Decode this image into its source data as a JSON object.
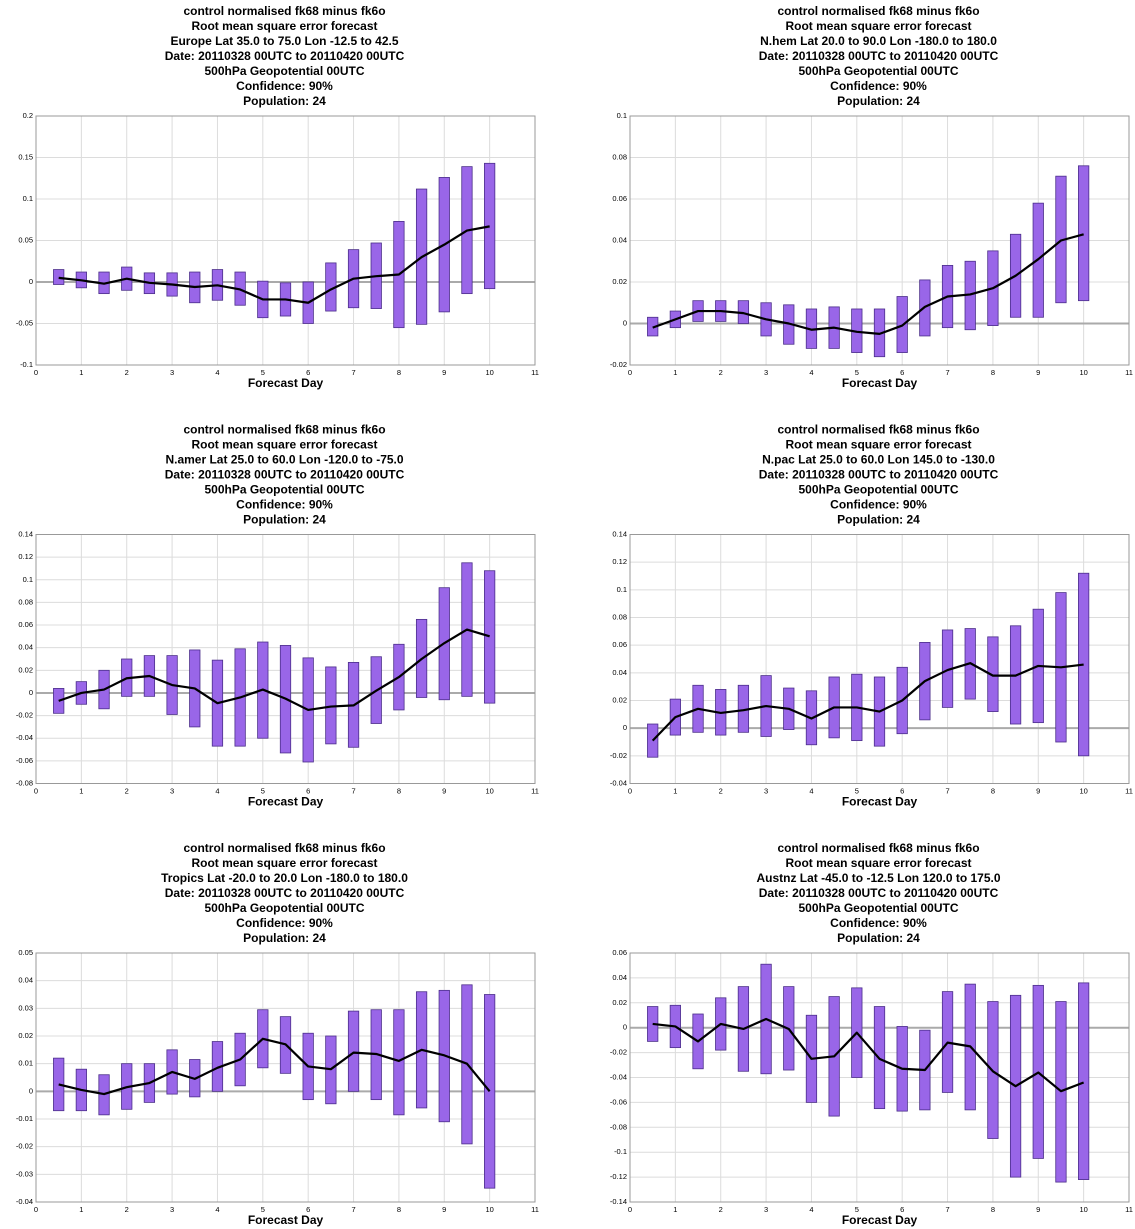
{
  "chart_data": [
    {
      "type": "interval",
      "title": [
        "control normalised  fk68 minus fk6o",
        "Root mean square error forecast",
        "Europe  Lat  35.0 to 75.0 Lon  -12.5 to  42.5",
        "Date: 20110328 00UTC to 20110420 00UTC",
        "500hPa Geopotential 00UTC",
        "Confidence: 90%",
        "Population: 24"
      ],
      "xlabel": "Forecast Day",
      "xlim": [
        0,
        11
      ],
      "xticks": [
        0,
        1,
        2,
        3,
        4,
        5,
        6,
        7,
        8,
        9,
        10,
        11
      ],
      "ylim": [
        -0.1,
        0.2
      ],
      "yticks": [
        -0.1,
        -0.05,
        0,
        0.05,
        0.1,
        0.15,
        0.2
      ],
      "grid": true,
      "bar_color": "#9966e8",
      "line_color": "#000000",
      "x": [
        0.5,
        1,
        1.5,
        2,
        2.5,
        3,
        3.5,
        4,
        4.5,
        5,
        5.5,
        6,
        6.5,
        7,
        7.5,
        8,
        8.5,
        9,
        9.5,
        10
      ],
      "values": [
        0.005,
        0.002,
        -0.002,
        0.004,
        -0.001,
        -0.003,
        -0.006,
        -0.004,
        -0.009,
        -0.021,
        -0.021,
        -0.025,
        -0.009,
        0.004,
        0.007,
        0.009,
        0.03,
        0.045,
        0.062,
        0.067
      ],
      "low": [
        -0.003,
        -0.007,
        -0.014,
        -0.01,
        -0.014,
        -0.017,
        -0.025,
        -0.022,
        -0.028,
        -0.043,
        -0.041,
        -0.05,
        -0.035,
        -0.031,
        -0.032,
        -0.055,
        -0.051,
        -0.036,
        -0.014,
        -0.008
      ],
      "high": [
        0.015,
        0.012,
        0.012,
        0.018,
        0.011,
        0.011,
        0.012,
        0.015,
        0.012,
        0.001,
        -0.001,
        0.0,
        0.023,
        0.039,
        0.047,
        0.073,
        0.112,
        0.126,
        0.139,
        0.143
      ]
    },
    {
      "type": "interval",
      "title": [
        "control normalised  fk68 minus fk6o",
        "Root mean square error forecast",
        "N.hem  Lat  20.0 to 90.0 Lon  -180.0 to  180.0",
        "Date: 20110328 00UTC to 20110420 00UTC",
        "500hPa Geopotential 00UTC",
        "Confidence: 90%",
        "Population: 24"
      ],
      "xlabel": "Forecast Day",
      "xlim": [
        0,
        11
      ],
      "xticks": [
        0,
        1,
        2,
        3,
        4,
        5,
        6,
        7,
        8,
        9,
        10,
        11
      ],
      "ylim": [
        -0.02,
        0.1
      ],
      "yticks": [
        -0.02,
        0,
        0.02,
        0.04,
        0.06,
        0.08,
        0.1
      ],
      "grid": true,
      "bar_color": "#9966e8",
      "line_color": "#000000",
      "x": [
        0.5,
        1,
        1.5,
        2,
        2.5,
        3,
        3.5,
        4,
        4.5,
        5,
        5.5,
        6,
        6.5,
        7,
        7.5,
        8,
        8.5,
        9,
        9.5,
        10
      ],
      "values": [
        -0.002,
        0.002,
        0.006,
        0.006,
        0.005,
        0.002,
        0.0,
        -0.003,
        -0.002,
        -0.004,
        -0.005,
        -0.001,
        0.008,
        0.013,
        0.014,
        0.017,
        0.023,
        0.031,
        0.04,
        0.043
      ],
      "low": [
        -0.006,
        -0.002,
        0.001,
        0.001,
        0.0,
        -0.006,
        -0.01,
        -0.012,
        -0.012,
        -0.014,
        -0.016,
        -0.014,
        -0.006,
        -0.002,
        -0.003,
        -0.001,
        0.003,
        0.003,
        0.01,
        0.011
      ],
      "high": [
        0.003,
        0.006,
        0.011,
        0.011,
        0.011,
        0.01,
        0.009,
        0.007,
        0.008,
        0.007,
        0.007,
        0.013,
        0.021,
        0.028,
        0.03,
        0.035,
        0.043,
        0.058,
        0.071,
        0.076
      ]
    },
    {
      "type": "interval",
      "title": [
        "control normalised  fk68 minus fk6o",
        "Root mean square error forecast",
        "N.amer  Lat  25.0 to 60.0 Lon  -120.0 to  -75.0",
        "Date: 20110328 00UTC to 20110420 00UTC",
        "500hPa Geopotential 00UTC",
        "Confidence: 90%",
        "Population: 24"
      ],
      "xlabel": "Forecast Day",
      "xlim": [
        0,
        11
      ],
      "xticks": [
        0,
        1,
        2,
        3,
        4,
        5,
        6,
        7,
        8,
        9,
        10,
        11
      ],
      "ylim": [
        -0.08,
        0.14
      ],
      "yticks": [
        -0.08,
        -0.06,
        -0.04,
        -0.02,
        0,
        0.02,
        0.04,
        0.06,
        0.08,
        0.1,
        0.12,
        0.14
      ],
      "grid": true,
      "bar_color": "#9966e8",
      "line_color": "#000000",
      "x": [
        0.5,
        1,
        1.5,
        2,
        2.5,
        3,
        3.5,
        4,
        4.5,
        5,
        5.5,
        6,
        6.5,
        7,
        7.5,
        8,
        8.5,
        9,
        9.5,
        10
      ],
      "values": [
        -0.007,
        0.0,
        0.003,
        0.013,
        0.015,
        0.007,
        0.004,
        -0.009,
        -0.004,
        0.003,
        -0.005,
        -0.015,
        -0.012,
        -0.011,
        0.002,
        0.014,
        0.03,
        0.044,
        0.056,
        0.05
      ],
      "low": [
        -0.018,
        -0.01,
        -0.014,
        -0.003,
        -0.003,
        -0.019,
        -0.03,
        -0.047,
        -0.047,
        -0.04,
        -0.053,
        -0.061,
        -0.045,
        -0.048,
        -0.027,
        -0.015,
        -0.004,
        -0.006,
        -0.003,
        -0.009
      ],
      "high": [
        0.004,
        0.01,
        0.02,
        0.03,
        0.033,
        0.033,
        0.038,
        0.029,
        0.039,
        0.045,
        0.042,
        0.031,
        0.023,
        0.027,
        0.032,
        0.043,
        0.065,
        0.093,
        0.115,
        0.108
      ]
    },
    {
      "type": "interval",
      "title": [
        "control normalised  fk68 minus fk6o",
        "Root mean square error forecast",
        "N.pac  Lat  25.0 to 60.0 Lon  145.0 to -130.0",
        "Date: 20110328 00UTC to 20110420 00UTC",
        "500hPa Geopotential 00UTC",
        "Confidence: 90%",
        "Population: 24"
      ],
      "xlabel": "Forecast Day",
      "xlim": [
        0,
        11
      ],
      "xticks": [
        0,
        1,
        2,
        3,
        4,
        5,
        6,
        7,
        8,
        9,
        10,
        11
      ],
      "ylim": [
        -0.04,
        0.14
      ],
      "yticks": [
        -0.04,
        -0.02,
        0,
        0.02,
        0.04,
        0.06,
        0.08,
        0.1,
        0.12,
        0.14
      ],
      "grid": true,
      "bar_color": "#9966e8",
      "line_color": "#000000",
      "x": [
        0.5,
        1,
        1.5,
        2,
        2.5,
        3,
        3.5,
        4,
        4.5,
        5,
        5.5,
        6,
        6.5,
        7,
        7.5,
        8,
        8.5,
        9,
        9.5,
        10
      ],
      "values": [
        -0.009,
        0.008,
        0.014,
        0.011,
        0.013,
        0.016,
        0.014,
        0.007,
        0.015,
        0.015,
        0.012,
        0.02,
        0.034,
        0.042,
        0.047,
        0.038,
        0.038,
        0.045,
        0.044,
        0.046
      ],
      "low": [
        -0.021,
        -0.005,
        -0.003,
        -0.005,
        -0.003,
        -0.006,
        -0.001,
        -0.012,
        -0.007,
        -0.009,
        -0.013,
        -0.004,
        0.006,
        0.015,
        0.021,
        0.012,
        0.003,
        0.004,
        -0.01,
        -0.02
      ],
      "high": [
        0.003,
        0.021,
        0.031,
        0.028,
        0.031,
        0.038,
        0.029,
        0.027,
        0.037,
        0.039,
        0.037,
        0.044,
        0.062,
        0.071,
        0.072,
        0.066,
        0.074,
        0.086,
        0.098,
        0.112
      ]
    },
    {
      "type": "interval",
      "title": [
        "control normalised  fk68 minus fk6o",
        "Root mean square error forecast",
        "Tropics  Lat  -20.0 to 20.0 Lon  -180.0 to  180.0",
        "Date: 20110328 00UTC to 20110420 00UTC",
        "500hPa Geopotential 00UTC",
        "Confidence: 90%",
        "Population: 24"
      ],
      "xlabel": "Forecast Day",
      "xlim": [
        0,
        11
      ],
      "xticks": [
        0,
        1,
        2,
        3,
        4,
        5,
        6,
        7,
        8,
        9,
        10,
        11
      ],
      "ylim": [
        -0.04,
        0.05
      ],
      "yticks": [
        -0.04,
        -0.03,
        -0.02,
        -0.01,
        0,
        0.01,
        0.02,
        0.03,
        0.04,
        0.05
      ],
      "grid": true,
      "bar_color": "#9966e8",
      "line_color": "#000000",
      "x": [
        0.5,
        1,
        1.5,
        2,
        2.5,
        3,
        3.5,
        4,
        4.5,
        5,
        5.5,
        6,
        6.5,
        7,
        7.5,
        8,
        8.5,
        9,
        9.5,
        10
      ],
      "values": [
        0.0025,
        0.0005,
        -0.001,
        0.0015,
        0.003,
        0.007,
        0.0045,
        0.0085,
        0.0115,
        0.019,
        0.017,
        0.009,
        0.008,
        0.014,
        0.0135,
        0.011,
        0.015,
        0.013,
        0.01,
        0.0
      ],
      "low": [
        -0.007,
        -0.007,
        -0.0085,
        -0.0065,
        -0.004,
        -0.001,
        -0.002,
        0.0,
        0.002,
        0.0085,
        0.0065,
        -0.003,
        -0.0045,
        0.0,
        -0.003,
        -0.0085,
        -0.006,
        -0.011,
        -0.019,
        -0.035
      ],
      "high": [
        0.012,
        0.008,
        0.006,
        0.01,
        0.01,
        0.015,
        0.0115,
        0.018,
        0.021,
        0.0295,
        0.027,
        0.021,
        0.02,
        0.029,
        0.0295,
        0.0295,
        0.036,
        0.0365,
        0.0385,
        0.035
      ]
    },
    {
      "type": "interval",
      "title": [
        "control normalised  fk68 minus fk6o",
        "Root mean square error forecast",
        "Austnz  Lat  -45.0 to -12.5 Lon  120.0 to  175.0",
        "Date: 20110328 00UTC to 20110420 00UTC",
        "500hPa Geopotential 00UTC",
        "Confidence: 90%",
        "Population: 24"
      ],
      "xlabel": "Forecast Day",
      "xlim": [
        0,
        11
      ],
      "xticks": [
        0,
        1,
        2,
        3,
        4,
        5,
        6,
        7,
        8,
        9,
        10,
        11
      ],
      "ylim": [
        -0.14,
        0.06
      ],
      "yticks": [
        -0.14,
        -0.12,
        -0.1,
        -0.08,
        -0.06,
        -0.04,
        -0.02,
        0,
        0.02,
        0.04,
        0.06
      ],
      "grid": true,
      "bar_color": "#9966e8",
      "line_color": "#000000",
      "x": [
        0.5,
        1,
        1.5,
        2,
        2.5,
        3,
        3.5,
        4,
        4.5,
        5,
        5.5,
        6,
        6.5,
        7,
        7.5,
        8,
        8.5,
        9,
        9.5,
        10
      ],
      "values": [
        0.003,
        0.001,
        -0.011,
        0.003,
        -0.001,
        0.007,
        -0.001,
        -0.025,
        -0.023,
        -0.004,
        -0.025,
        -0.033,
        -0.034,
        -0.012,
        -0.015,
        -0.035,
        -0.047,
        -0.036,
        -0.051,
        -0.044
      ],
      "low": [
        -0.011,
        -0.016,
        -0.033,
        -0.018,
        -0.035,
        -0.037,
        -0.034,
        -0.06,
        -0.071,
        -0.04,
        -0.065,
        -0.067,
        -0.066,
        -0.052,
        -0.066,
        -0.089,
        -0.12,
        -0.105,
        -0.124,
        -0.122
      ],
      "high": [
        0.017,
        0.018,
        0.011,
        0.024,
        0.033,
        0.051,
        0.033,
        0.01,
        0.025,
        0.032,
        0.017,
        0.001,
        -0.002,
        0.029,
        0.035,
        0.021,
        0.026,
        0.034,
        0.021,
        0.036
      ]
    }
  ]
}
